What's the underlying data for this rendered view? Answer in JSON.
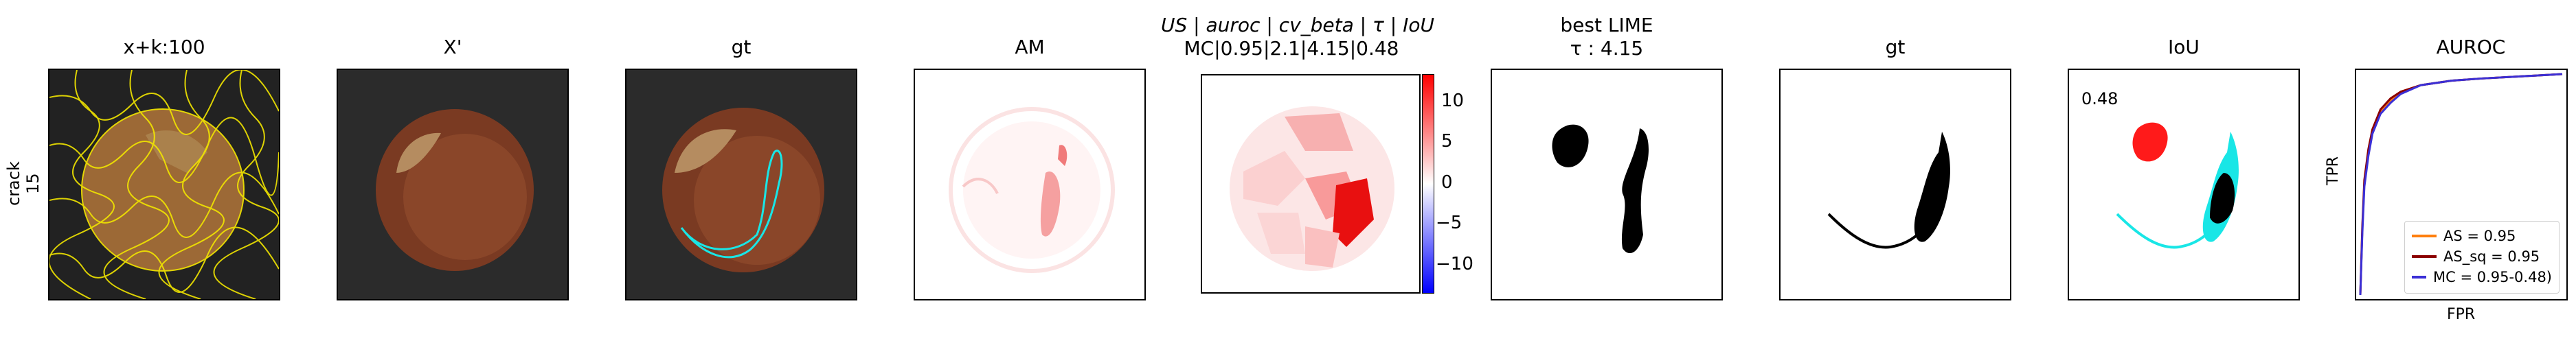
{
  "row_label": "crack\n15",
  "titles": {
    "p1": "x+k:100",
    "p2": "X'",
    "p3": "gt",
    "p4": "AM",
    "p5_line1": "US | auroc | cv_beta | τ | IoU",
    "p5_line2": "MC|0.95|2.1|4.15|0.48",
    "p6_line1": "best LIME",
    "p6_line2": "τ : 4.15",
    "p7": "gt",
    "p8": "IoU",
    "p9": "AUROC"
  },
  "iou_value": "0.48",
  "colorbar": {
    "ticks": [
      "10",
      "5",
      "0",
      "−5",
      "−10"
    ],
    "colors": [
      "#0000ff",
      "#ffffff",
      "#ff0000"
    ]
  },
  "colors": {
    "segment_lines": "#f2e600",
    "gt_contour": "#19e6e6",
    "pred_mask": "#ff1a1a",
    "mask": "#000000"
  },
  "chart_data": {
    "type": "line",
    "title": "AUROC",
    "xlabel": "FPR",
    "ylabel": "TPR",
    "xlim": [
      0,
      1
    ],
    "ylim": [
      0,
      1
    ],
    "grid": false,
    "legend_placement": "bottom-right",
    "series": [
      {
        "name": "AS = 0.95",
        "color": "#ff7f0e",
        "x": [
          0,
          0.01,
          0.02,
          0.04,
          0.06,
          0.1,
          0.15,
          0.2,
          0.3,
          0.45,
          0.6,
          0.8,
          1.0
        ],
        "y": [
          0,
          0.3,
          0.5,
          0.65,
          0.74,
          0.83,
          0.88,
          0.92,
          0.95,
          0.97,
          0.98,
          0.99,
          1.0
        ]
      },
      {
        "name": "AS_sq = 0.95",
        "color": "#8b0000",
        "x": [
          0,
          0.01,
          0.02,
          0.04,
          0.06,
          0.1,
          0.15,
          0.2,
          0.3,
          0.45,
          0.6,
          0.8,
          1.0
        ],
        "y": [
          0,
          0.31,
          0.52,
          0.66,
          0.75,
          0.84,
          0.89,
          0.92,
          0.95,
          0.97,
          0.98,
          0.99,
          1.0
        ]
      },
      {
        "name": "MC = 0.95-0.48)",
        "color": "#3b2fd6",
        "x": [
          0,
          0.01,
          0.02,
          0.04,
          0.06,
          0.1,
          0.15,
          0.2,
          0.3,
          0.45,
          0.6,
          0.8,
          1.0
        ],
        "y": [
          0,
          0.28,
          0.49,
          0.63,
          0.73,
          0.82,
          0.87,
          0.91,
          0.95,
          0.97,
          0.98,
          0.99,
          1.0
        ]
      }
    ]
  }
}
